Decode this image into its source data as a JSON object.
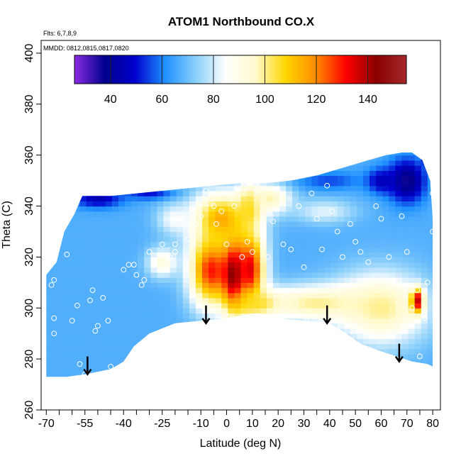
{
  "chart_data": {
    "type": "heatmap",
    "title": "ATOM1 Northbound CO.X",
    "notes": [
      "Flts: 6,7,8,9",
      "MMDD: 0812,0815,0817,0820"
    ],
    "xlabel": "Latitude (deg N)",
    "ylabel": "Theta (C)",
    "xlim": [
      -72,
      83
    ],
    "ylim": [
      260,
      405
    ],
    "x_tick_labels": [
      "-70",
      "-55",
      "-40",
      "-25",
      "-10",
      "0",
      "10",
      "20",
      "30",
      "40",
      "50",
      "60",
      "70",
      "80"
    ],
    "x_tick_values": [
      -70,
      -55,
      -40,
      -25,
      -10,
      0,
      10,
      20,
      30,
      40,
      50,
      60,
      70,
      80
    ],
    "x_minor_ticks": [
      -65,
      -60,
      -50,
      -45,
      -35,
      -30,
      -20,
      -15,
      -5,
      5,
      15,
      25,
      35,
      45,
      55,
      65,
      75
    ],
    "y_tick_labels": [
      "260",
      "280",
      "300",
      "320",
      "340",
      "360",
      "380",
      "400"
    ],
    "y_tick_values": [
      260,
      280,
      300,
      320,
      340,
      360,
      380,
      400
    ],
    "colorbar": {
      "range": [
        26,
        155
      ],
      "tick_labels": [
        "40",
        "60",
        "80",
        "100",
        "120",
        "140"
      ],
      "tick_values": [
        40,
        60,
        80,
        100,
        120,
        140
      ],
      "colors": [
        "#8a2be2",
        "#00008b",
        "#0000cd",
        "#1e90ff",
        "#87cefa",
        "#ffffff",
        "#fffacd",
        "#ffd700",
        "#ff8c00",
        "#ff0000",
        "#8b0000",
        "#a52a2a"
      ]
    },
    "arrows_latitude": [
      -54,
      -8,
      39,
      67
    ],
    "arrows_theta_tip": [
      274,
      294,
      294,
      279
    ],
    "upper_boundary": [
      [
        -70,
        313
      ],
      [
        -66,
        318
      ],
      [
        -63,
        330
      ],
      [
        -59,
        337
      ],
      [
        -56,
        344
      ],
      [
        -45,
        344
      ],
      [
        -35,
        345
      ],
      [
        -25,
        346
      ],
      [
        -15,
        347
      ],
      [
        -5,
        348
      ],
      [
        5,
        349
      ],
      [
        15,
        349
      ],
      [
        25,
        350
      ],
      [
        35,
        352
      ],
      [
        45,
        355
      ],
      [
        55,
        358
      ],
      [
        62,
        360
      ],
      [
        68,
        361
      ],
      [
        72,
        361
      ],
      [
        76,
        358
      ],
      [
        79,
        350
      ],
      [
        80,
        335
      ],
      [
        80,
        300
      ]
    ],
    "lower_boundary": [
      [
        80,
        277
      ],
      [
        78,
        278
      ],
      [
        72,
        279
      ],
      [
        66,
        281
      ],
      [
        60,
        283
      ],
      [
        52,
        286
      ],
      [
        45,
        291
      ],
      [
        40,
        294
      ],
      [
        30,
        295
      ],
      [
        20,
        296
      ],
      [
        12,
        298
      ],
      [
        5,
        297
      ],
      [
        0,
        296
      ],
      [
        -10,
        295
      ],
      [
        -20,
        294
      ],
      [
        -30,
        290
      ],
      [
        -36,
        285
      ],
      [
        -40,
        279
      ],
      [
        -45,
        276
      ],
      [
        -55,
        274
      ],
      [
        -62,
        273
      ],
      [
        -70,
        273
      ]
    ],
    "field_blobs": [
      {
        "lat": -6,
        "theta": 315,
        "value": 130,
        "sx": 7,
        "sy": 12
      },
      {
        "lat": 3,
        "theta": 313,
        "value": 150,
        "sx": 4,
        "sy": 12
      },
      {
        "lat": 9,
        "theta": 315,
        "value": 135,
        "sx": 5,
        "sy": 13
      },
      {
        "lat": -2,
        "theta": 335,
        "value": 115,
        "sx": 10,
        "sy": 9
      },
      {
        "lat": 9,
        "theta": 340,
        "value": 110,
        "sx": 4,
        "sy": 7
      },
      {
        "lat": 17,
        "theta": 343,
        "value": 98,
        "sx": 7,
        "sy": 5
      },
      {
        "lat": 13,
        "theta": 302,
        "value": 110,
        "sx": 7,
        "sy": 4
      },
      {
        "lat": 35,
        "theta": 302,
        "value": 100,
        "sx": 20,
        "sy": 6
      },
      {
        "lat": 60,
        "theta": 300,
        "value": 100,
        "sx": 15,
        "sy": 12
      },
      {
        "lat": 74,
        "theta": 303,
        "value": 138,
        "sx": 2,
        "sy": 4
      },
      {
        "lat": 70,
        "theta": 350,
        "value": 35,
        "sx": 6,
        "sy": 7
      },
      {
        "lat": 79,
        "theta": 360,
        "value": 30,
        "sx": 2,
        "sy": 3
      },
      {
        "lat": 60,
        "theta": 350,
        "value": 45,
        "sx": 5,
        "sy": 4
      },
      {
        "lat": -50,
        "theta": 343,
        "value": 45,
        "sx": 8,
        "sy": 3
      },
      {
        "lat": -30,
        "theta": 345,
        "value": 50,
        "sx": 8,
        "sy": 2
      },
      {
        "lat": 40,
        "theta": 350,
        "value": 55,
        "sx": 10,
        "sy": 3
      },
      {
        "lat": -20,
        "theta": 335,
        "value": 85,
        "sx": 6,
        "sy": 5
      },
      {
        "lat": -25,
        "theta": 318,
        "value": 92,
        "sx": 5,
        "sy": 5
      },
      {
        "lat": 38,
        "theta": 338,
        "value": 82,
        "sx": 10,
        "sy": 4
      }
    ],
    "field_background": 67,
    "sample_points": [
      [
        -68,
        309
      ],
      [
        -67,
        311
      ],
      [
        -62,
        321
      ],
      [
        -67,
        290
      ],
      [
        -67,
        296
      ],
      [
        -60,
        295
      ],
      [
        -58,
        301
      ],
      [
        -57,
        278
      ],
      [
        -55,
        274
      ],
      [
        -52,
        307
      ],
      [
        -53,
        303
      ],
      [
        -48,
        304
      ],
      [
        -51,
        291
      ],
      [
        -50,
        293
      ],
      [
        -46,
        295
      ],
      [
        -45,
        277
      ],
      [
        -40,
        315
      ],
      [
        -38,
        317
      ],
      [
        -36,
        317
      ],
      [
        -35,
        313
      ],
      [
        -33,
        309
      ],
      [
        -32,
        311
      ],
      [
        -30,
        322
      ],
      [
        -28,
        318
      ],
      [
        -25,
        325
      ],
      [
        -22,
        320
      ],
      [
        -20,
        325
      ],
      [
        -18,
        335
      ],
      [
        -15,
        327
      ],
      [
        -12,
        333
      ],
      [
        -10,
        336
      ],
      [
        -8,
        346
      ],
      [
        -5,
        340
      ],
      [
        -4,
        333
      ],
      [
        -2,
        338
      ],
      [
        0,
        325
      ],
      [
        3,
        340
      ],
      [
        6,
        320
      ],
      [
        8,
        326
      ],
      [
        10,
        322
      ],
      [
        12,
        346
      ],
      [
        14,
        330
      ],
      [
        16,
        320
      ],
      [
        18,
        334
      ],
      [
        20,
        346
      ],
      [
        22,
        325
      ],
      [
        25,
        323
      ],
      [
        28,
        340
      ],
      [
        30,
        316
      ],
      [
        33,
        345
      ],
      [
        35,
        335
      ],
      [
        37,
        323
      ],
      [
        39,
        348
      ],
      [
        41,
        338
      ],
      [
        43,
        330
      ],
      [
        45,
        320
      ],
      [
        48,
        333
      ],
      [
        50,
        326
      ],
      [
        52,
        322
      ],
      [
        55,
        318
      ],
      [
        58,
        340
      ],
      [
        60,
        335
      ],
      [
        63,
        320
      ],
      [
        65,
        310
      ],
      [
        68,
        336
      ],
      [
        70,
        322
      ],
      [
        72,
        300
      ],
      [
        74,
        307
      ],
      [
        75,
        281
      ],
      [
        77,
        296
      ],
      [
        78,
        310
      ],
      [
        80,
        330
      ],
      [
        80,
        345
      ],
      [
        -20,
        322
      ],
      [
        31,
        295
      ],
      [
        20,
        295
      ],
      [
        44,
        296
      ]
    ]
  }
}
